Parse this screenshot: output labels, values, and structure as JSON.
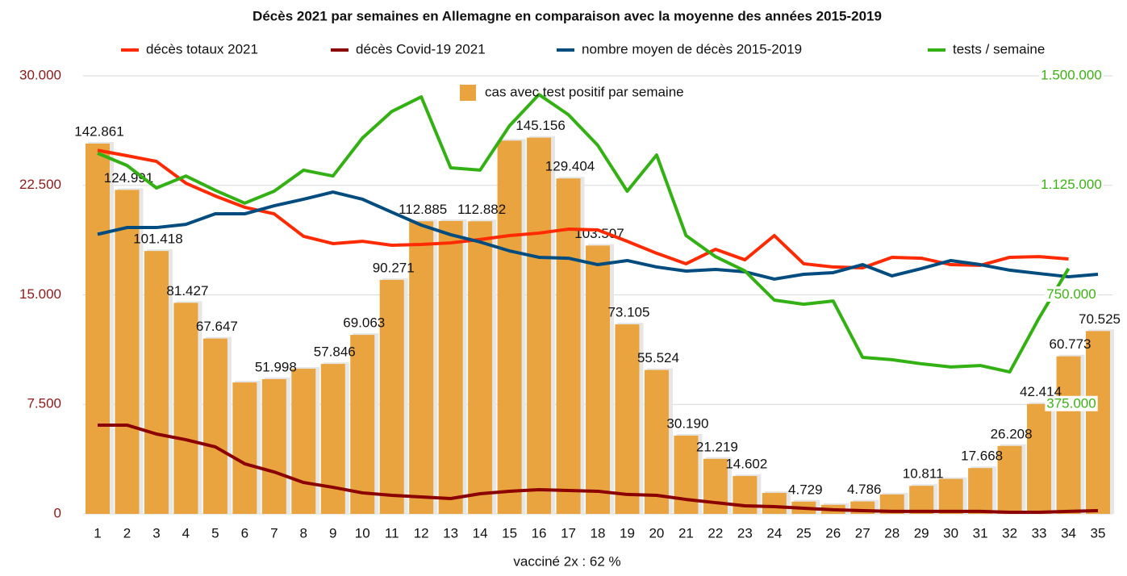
{
  "chart_data": {
    "type": "bar",
    "title": "Décès 2021 par semaines en Allemagne en comparaison avec la moyenne des années 2015-2019",
    "xlabel": "vacciné 2x : 62 %",
    "categories": [
      "1",
      "2",
      "3",
      "4",
      "5",
      "6",
      "7",
      "8",
      "9",
      "10",
      "11",
      "12",
      "13",
      "14",
      "15",
      "16",
      "17",
      "18",
      "19",
      "20",
      "21",
      "22",
      "23",
      "24",
      "25",
      "26",
      "27",
      "28",
      "29",
      "30",
      "31",
      "32",
      "33",
      "34",
      "35"
    ],
    "ylim": [
      0,
      30000
    ],
    "yticks": [
      0,
      {
        "value": 7500,
        "label": "7.500"
      },
      {
        "value": 15000,
        "label": "15.000"
      },
      {
        "value": 22500,
        "label": "22.500"
      },
      {
        "value": 30000,
        "label": "30.000"
      }
    ],
    "y2lim": [
      0,
      1500000
    ],
    "y2ticks": [
      {
        "value": 375000,
        "label": "375.000"
      },
      {
        "value": 750000,
        "label": "750.000"
      },
      {
        "value": 1125000,
        "label": "1.125.000"
      },
      {
        "value": 1500000,
        "label": "1.500.000"
      }
    ],
    "y3lim": [
      0,
      169000
    ],
    "grid": true,
    "series": [
      {
        "name": "décès totaux 2021",
        "type": "line",
        "color": "#ff2a00",
        "values": [
          24900,
          24530,
          24140,
          22650,
          21770,
          21000,
          20550,
          19010,
          18510,
          18670,
          18400,
          18450,
          18560,
          18790,
          19060,
          19230,
          19500,
          19450,
          18670,
          17850,
          17130,
          18120,
          17400,
          19060,
          17130,
          16910,
          16850,
          17570,
          17510,
          17070,
          17020,
          17570,
          17620,
          17460,
          null
        ]
      },
      {
        "name": "décès Covid-19 2021",
        "type": "line",
        "color": "#8b0000",
        "values": [
          6080,
          6080,
          5470,
          5080,
          4590,
          3430,
          2870,
          2150,
          1820,
          1440,
          1270,
          1160,
          1050,
          1380,
          1550,
          1660,
          1600,
          1550,
          1330,
          1270,
          990,
          770,
          550,
          500,
          390,
          280,
          220,
          170,
          170,
          170,
          170,
          110,
          110,
          170,
          220
        ]
      },
      {
        "name": "nombre moyen de décès 2015-2019",
        "type": "line",
        "color": "#004c7f",
        "values": [
          19150,
          19610,
          19610,
          19830,
          20550,
          20550,
          21100,
          21550,
          22040,
          21550,
          20660,
          19780,
          19120,
          18620,
          18010,
          17570,
          17510,
          17070,
          17350,
          16910,
          16630,
          16740,
          16580,
          16080,
          16410,
          16520,
          17070,
          16300,
          16800,
          17350,
          17070,
          16690,
          16460,
          16240,
          16410
        ]
      },
      {
        "name": "tests / semaine",
        "type": "line",
        "color": "#33b014",
        "axis": "y2",
        "values": [
          1235000,
          1193000,
          1116000,
          1157000,
          1108000,
          1064000,
          1105000,
          1177000,
          1157000,
          1287000,
          1378000,
          1428000,
          1185000,
          1177000,
          1329000,
          1436000,
          1367000,
          1262000,
          1105000,
          1229000,
          953000,
          881000,
          832000,
          732000,
          718000,
          729000,
          536000,
          528000,
          514000,
          503000,
          508000,
          486000,
          671000,
          840000,
          null
        ]
      },
      {
        "name": "cas avec test positif par semaine",
        "type": "bar",
        "color": "#e9a33f",
        "axis": "y3",
        "values": [
          142861,
          124991,
          101418,
          81427,
          67647,
          50700,
          51998,
          56000,
          57846,
          69063,
          90271,
          112885,
          113000,
          112882,
          144000,
          145156,
          129404,
          103507,
          73105,
          55524,
          30190,
          21219,
          14602,
          8100,
          4729,
          3500,
          4786,
          7500,
          10811,
          13500,
          17668,
          26208,
          42414,
          60773,
          70525
        ],
        "value_labels": [
          "142.861",
          "124.991",
          "101.418",
          "81.427",
          "67.647",
          null,
          "51.998",
          null,
          "57.846",
          "69.063",
          "90.271",
          "112.885",
          null,
          "112.882",
          null,
          "145.156",
          "129.404",
          "103.507",
          "73.105",
          "55.524",
          "30.190",
          "21.219",
          "14.602",
          null,
          "4.729",
          null,
          "4.786",
          null,
          "10.811",
          null,
          "17.668",
          "26.208",
          "42.414",
          "60.773",
          "70.525"
        ]
      }
    ]
  }
}
